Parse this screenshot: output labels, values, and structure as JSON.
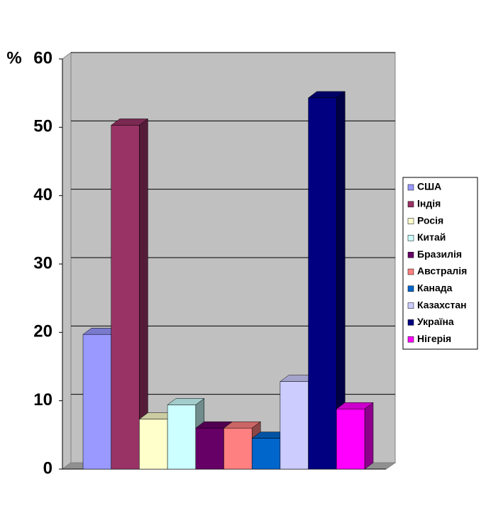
{
  "chart_data": {
    "type": "bar3d",
    "y_label": "%",
    "categories": [
      null
    ],
    "series": [
      {
        "name": "США",
        "color": "#9999ff",
        "values": [
          19.7
        ]
      },
      {
        "name": "Індія",
        "color": "#993366",
        "values": [
          50.3
        ]
      },
      {
        "name": "Росія",
        "color": "#ffffcc",
        "values": [
          7.3
        ]
      },
      {
        "name": "Китай",
        "color": "#ccffff",
        "values": [
          9.4
        ]
      },
      {
        "name": "Бразилія",
        "color": "#660066",
        "values": [
          6
        ]
      },
      {
        "name": "Австралія",
        "color": "#ff8080",
        "values": [
          6
        ]
      },
      {
        "name": "Канада",
        "color": "#0066cc",
        "values": [
          4.5
        ]
      },
      {
        "name": "Казахстан",
        "color": "#ccccff",
        "values": [
          12.8
        ]
      },
      {
        "name": "Україна",
        "color": "#000080",
        "values": [
          54.3
        ]
      },
      {
        "name": "Нігерія",
        "color": "#ff00ff",
        "values": [
          8.8
        ]
      }
    ],
    "ylim": [
      0,
      60
    ],
    "yticks": [
      0,
      10,
      20,
      30,
      40,
      50,
      60
    ],
    "grid": true,
    "legend": "right"
  }
}
